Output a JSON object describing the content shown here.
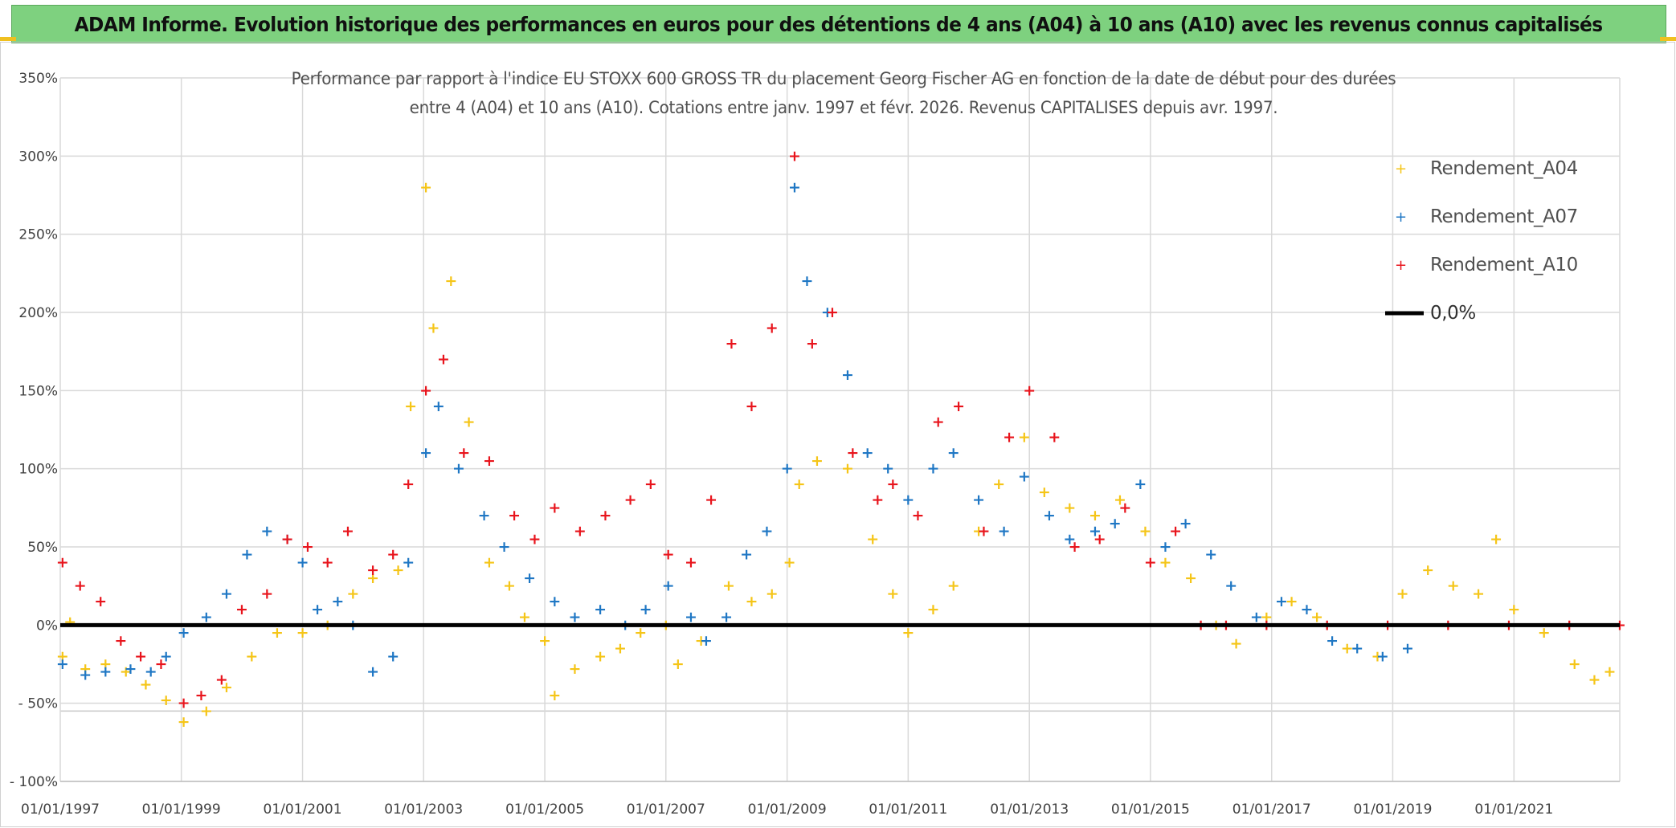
{
  "banner": {
    "title": "ADAM Informe. Evolution historique des performances en euros pour des détentions de 4 ans (A04) à 10 ans (A10) avec les revenus connus capitalisés"
  },
  "chart_data": {
    "type": "scatter",
    "title_line1": "Performance par rapport à l'indice EU STOXX 600 GROSS TR  du placement Georg Fischer AG en fonction de la date de début pour des durées",
    "title_line2": "entre 4 (A04) et 10 ans (A10). Cotations entre janv. 1997 et févr. 2026. Revenus CAPITALISES depuis avr. 1997.",
    "x_range": [
      "1997-01-01",
      "2022-10-01"
    ],
    "ylim": [
      -100,
      350
    ],
    "y_ticks": [
      {
        "value": 350,
        "label": "350%"
      },
      {
        "value": 300,
        "label": "300%"
      },
      {
        "value": 250,
        "label": "250%"
      },
      {
        "value": 200,
        "label": "200%"
      },
      {
        "value": 150,
        "label": "150%"
      },
      {
        "value": 100,
        "label": "100%"
      },
      {
        "value": 50,
        "label": "50%"
      },
      {
        "value": 0,
        "label": "0%"
      },
      {
        "value": -50,
        "label": "- 50%"
      },
      {
        "value": -100,
        "label": "- 100%"
      }
    ],
    "x_ticks": [
      {
        "value": "1997-01-01",
        "label": "01/01/1997"
      },
      {
        "value": "1999-01-01",
        "label": "01/01/1999"
      },
      {
        "value": "2001-01-01",
        "label": "01/01/2001"
      },
      {
        "value": "2003-01-01",
        "label": "01/01/2003"
      },
      {
        "value": "2005-01-01",
        "label": "01/01/2005"
      },
      {
        "value": "2007-01-01",
        "label": "01/01/2007"
      },
      {
        "value": "2009-01-01",
        "label": "01/01/2009"
      },
      {
        "value": "2011-01-01",
        "label": "01/01/2011"
      },
      {
        "value": "2013-01-01",
        "label": "01/01/2013"
      },
      {
        "value": "2015-01-01",
        "label": "01/01/2015"
      },
      {
        "value": "2017-01-01",
        "label": "01/01/2017"
      },
      {
        "value": "2019-01-01",
        "label": "01/01/2019"
      },
      {
        "value": "2021-01-01",
        "label": "01/01/2021"
      }
    ],
    "grid": true,
    "legend_position": "top-right",
    "reference_line": {
      "name": "0,0%",
      "value": 0,
      "color": "#000000"
    },
    "series": [
      {
        "name": "Rendement_A04",
        "color": "#f5c518",
        "points": [
          [
            "1997-01-15",
            -20
          ],
          [
            "1997-03-01",
            2
          ],
          [
            "1997-06-01",
            -28
          ],
          [
            "1997-10-01",
            -25
          ],
          [
            "1998-02-01",
            -30
          ],
          [
            "1998-06-01",
            -38
          ],
          [
            "1998-10-01",
            -48
          ],
          [
            "1999-01-15",
            -62
          ],
          [
            "1999-06-01",
            -55
          ],
          [
            "1999-10-01",
            -40
          ],
          [
            "2000-03-01",
            -20
          ],
          [
            "2000-08-01",
            -5
          ],
          [
            "2001-01-01",
            -5
          ],
          [
            "2001-06-01",
            0
          ],
          [
            "2001-11-01",
            20
          ],
          [
            "2002-03-01",
            30
          ],
          [
            "2002-08-01",
            35
          ],
          [
            "2002-10-15",
            140
          ],
          [
            "2003-01-15",
            280
          ],
          [
            "2003-03-01",
            190
          ],
          [
            "2003-06-15",
            220
          ],
          [
            "2003-10-01",
            130
          ],
          [
            "2004-02-01",
            40
          ],
          [
            "2004-06-01",
            25
          ],
          [
            "2004-09-01",
            5
          ],
          [
            "2005-01-01",
            -10
          ],
          [
            "2005-03-01",
            -45
          ],
          [
            "2005-07-01",
            -28
          ],
          [
            "2005-12-01",
            -20
          ],
          [
            "2006-04-01",
            -15
          ],
          [
            "2006-08-01",
            -5
          ],
          [
            "2007-01-01",
            0
          ],
          [
            "2007-03-15",
            -25
          ],
          [
            "2007-08-01",
            -10
          ],
          [
            "2008-01-15",
            25
          ],
          [
            "2008-06-01",
            15
          ],
          [
            "2008-10-01",
            20
          ],
          [
            "2009-01-15",
            40
          ],
          [
            "2009-03-15",
            90
          ],
          [
            "2009-07-01",
            105
          ],
          [
            "2010-01-01",
            100
          ],
          [
            "2010-06-01",
            55
          ],
          [
            "2010-10-01",
            20
          ],
          [
            "2011-01-01",
            -5
          ],
          [
            "2011-06-01",
            10
          ],
          [
            "2011-10-01",
            25
          ],
          [
            "2012-03-01",
            60
          ],
          [
            "2012-07-01",
            90
          ],
          [
            "2012-12-01",
            120
          ],
          [
            "2013-04-01",
            85
          ],
          [
            "2013-09-01",
            75
          ],
          [
            "2014-02-01",
            70
          ],
          [
            "2014-07-01",
            80
          ],
          [
            "2014-12-01",
            60
          ],
          [
            "2015-04-01",
            40
          ],
          [
            "2015-09-01",
            30
          ],
          [
            "2016-02-01",
            0
          ],
          [
            "2016-06-01",
            -12
          ],
          [
            "2016-12-01",
            5
          ],
          [
            "2017-05-01",
            15
          ],
          [
            "2017-10-01",
            5
          ],
          [
            "2018-04-01",
            -15
          ],
          [
            "2018-10-01",
            -20
          ],
          [
            "2019-03-01",
            20
          ],
          [
            "2019-08-01",
            35
          ],
          [
            "2020-01-01",
            25
          ],
          [
            "2020-06-01",
            20
          ],
          [
            "2020-09-15",
            55
          ],
          [
            "2021-01-01",
            10
          ],
          [
            "2021-07-01",
            -5
          ],
          [
            "2022-01-01",
            -25
          ],
          [
            "2022-05-01",
            -35
          ],
          [
            "2022-08-01",
            -30
          ]
        ]
      },
      {
        "name": "Rendement_A07",
        "color": "#1f77c4",
        "points": [
          [
            "1997-01-15",
            -25
          ],
          [
            "1997-06-01",
            -32
          ],
          [
            "1997-10-01",
            -30
          ],
          [
            "1998-03-01",
            -28
          ],
          [
            "1998-07-01",
            -30
          ],
          [
            "1998-10-01",
            -20
          ],
          [
            "1999-01-15",
            -5
          ],
          [
            "1999-06-01",
            5
          ],
          [
            "1999-10-01",
            20
          ],
          [
            "2000-02-01",
            45
          ],
          [
            "2000-06-01",
            60
          ],
          [
            "2000-10-01",
            55
          ],
          [
            "2001-01-01",
            40
          ],
          [
            "2001-04-01",
            10
          ],
          [
            "2001-08-01",
            15
          ],
          [
            "2001-11-01",
            0
          ],
          [
            "2002-03-01",
            -30
          ],
          [
            "2002-07-01",
            -20
          ],
          [
            "2002-10-01",
            40
          ],
          [
            "2003-01-15",
            110
          ],
          [
            "2003-04-01",
            140
          ],
          [
            "2003-08-01",
            100
          ],
          [
            "2004-01-01",
            70
          ],
          [
            "2004-05-01",
            50
          ],
          [
            "2004-10-01",
            30
          ],
          [
            "2005-03-01",
            15
          ],
          [
            "2005-07-01",
            5
          ],
          [
            "2005-12-01",
            10
          ],
          [
            "2006-05-01",
            0
          ],
          [
            "2006-09-01",
            10
          ],
          [
            "2007-01-15",
            25
          ],
          [
            "2007-06-01",
            5
          ],
          [
            "2007-09-01",
            -10
          ],
          [
            "2008-01-01",
            5
          ],
          [
            "2008-05-01",
            45
          ],
          [
            "2008-09-01",
            60
          ],
          [
            "2009-01-01",
            100
          ],
          [
            "2009-02-15",
            280
          ],
          [
            "2009-05-01",
            220
          ],
          [
            "2009-09-01",
            200
          ],
          [
            "2010-01-01",
            160
          ],
          [
            "2010-05-01",
            110
          ],
          [
            "2010-09-01",
            100
          ],
          [
            "2011-01-01",
            80
          ],
          [
            "2011-06-01",
            100
          ],
          [
            "2011-10-01",
            110
          ],
          [
            "2012-03-01",
            80
          ],
          [
            "2012-08-01",
            60
          ],
          [
            "2012-12-01",
            95
          ],
          [
            "2013-05-01",
            70
          ],
          [
            "2013-09-01",
            55
          ],
          [
            "2014-02-01",
            60
          ],
          [
            "2014-06-01",
            65
          ],
          [
            "2014-11-01",
            90
          ],
          [
            "2015-04-01",
            50
          ],
          [
            "2015-08-01",
            65
          ],
          [
            "2016-01-01",
            45
          ],
          [
            "2016-05-01",
            25
          ],
          [
            "2016-10-01",
            5
          ],
          [
            "2017-03-01",
            15
          ],
          [
            "2017-08-01",
            10
          ],
          [
            "2018-01-01",
            -10
          ],
          [
            "2018-06-01",
            -15
          ],
          [
            "2018-11-01",
            -20
          ],
          [
            "2019-04-01",
            -15
          ]
        ]
      },
      {
        "name": "Rendement_A10",
        "color": "#e8141c",
        "points": [
          [
            "1997-01-15",
            40
          ],
          [
            "1997-05-01",
            25
          ],
          [
            "1997-09-01",
            15
          ],
          [
            "1998-01-01",
            -10
          ],
          [
            "1998-05-01",
            -20
          ],
          [
            "1998-09-01",
            -25
          ],
          [
            "1999-01-15",
            -50
          ],
          [
            "1999-05-01",
            -45
          ],
          [
            "1999-09-01",
            -35
          ],
          [
            "2000-01-01",
            10
          ],
          [
            "2000-06-01",
            20
          ],
          [
            "2000-10-01",
            55
          ],
          [
            "2001-02-01",
            50
          ],
          [
            "2001-06-01",
            40
          ],
          [
            "2001-10-01",
            60
          ],
          [
            "2002-03-01",
            35
          ],
          [
            "2002-07-01",
            45
          ],
          [
            "2002-10-01",
            90
          ],
          [
            "2003-01-15",
            150
          ],
          [
            "2003-05-01",
            170
          ],
          [
            "2003-09-01",
            110
          ],
          [
            "2004-02-01",
            105
          ],
          [
            "2004-07-01",
            70
          ],
          [
            "2004-11-01",
            55
          ],
          [
            "2005-03-01",
            75
          ],
          [
            "2005-08-01",
            60
          ],
          [
            "2006-01-01",
            70
          ],
          [
            "2006-06-01",
            80
          ],
          [
            "2006-10-01",
            90
          ],
          [
            "2007-01-15",
            45
          ],
          [
            "2007-06-01",
            40
          ],
          [
            "2007-10-01",
            80
          ],
          [
            "2008-02-01",
            180
          ],
          [
            "2008-06-01",
            140
          ],
          [
            "2008-10-01",
            190
          ],
          [
            "2009-02-15",
            300
          ],
          [
            "2009-06-01",
            180
          ],
          [
            "2009-10-01",
            200
          ],
          [
            "2010-02-01",
            110
          ],
          [
            "2010-07-01",
            80
          ],
          [
            "2010-10-01",
            90
          ],
          [
            "2011-03-01",
            70
          ],
          [
            "2011-07-01",
            130
          ],
          [
            "2011-11-01",
            140
          ],
          [
            "2012-04-01",
            60
          ],
          [
            "2012-09-01",
            120
          ],
          [
            "2013-01-01",
            150
          ],
          [
            "2013-06-01",
            120
          ],
          [
            "2013-10-01",
            50
          ],
          [
            "2014-03-01",
            55
          ],
          [
            "2014-08-01",
            75
          ],
          [
            "2015-01-01",
            40
          ],
          [
            "2015-06-01",
            60
          ],
          [
            "2015-11-01",
            0
          ],
          [
            "2016-04-01",
            0
          ],
          [
            "2016-12-01",
            0
          ],
          [
            "2017-12-01",
            0
          ],
          [
            "2018-12-01",
            0
          ],
          [
            "2019-12-01",
            0
          ],
          [
            "2020-12-01",
            0
          ],
          [
            "2021-12-01",
            0
          ],
          [
            "2022-10-01",
            0
          ]
        ]
      }
    ]
  }
}
